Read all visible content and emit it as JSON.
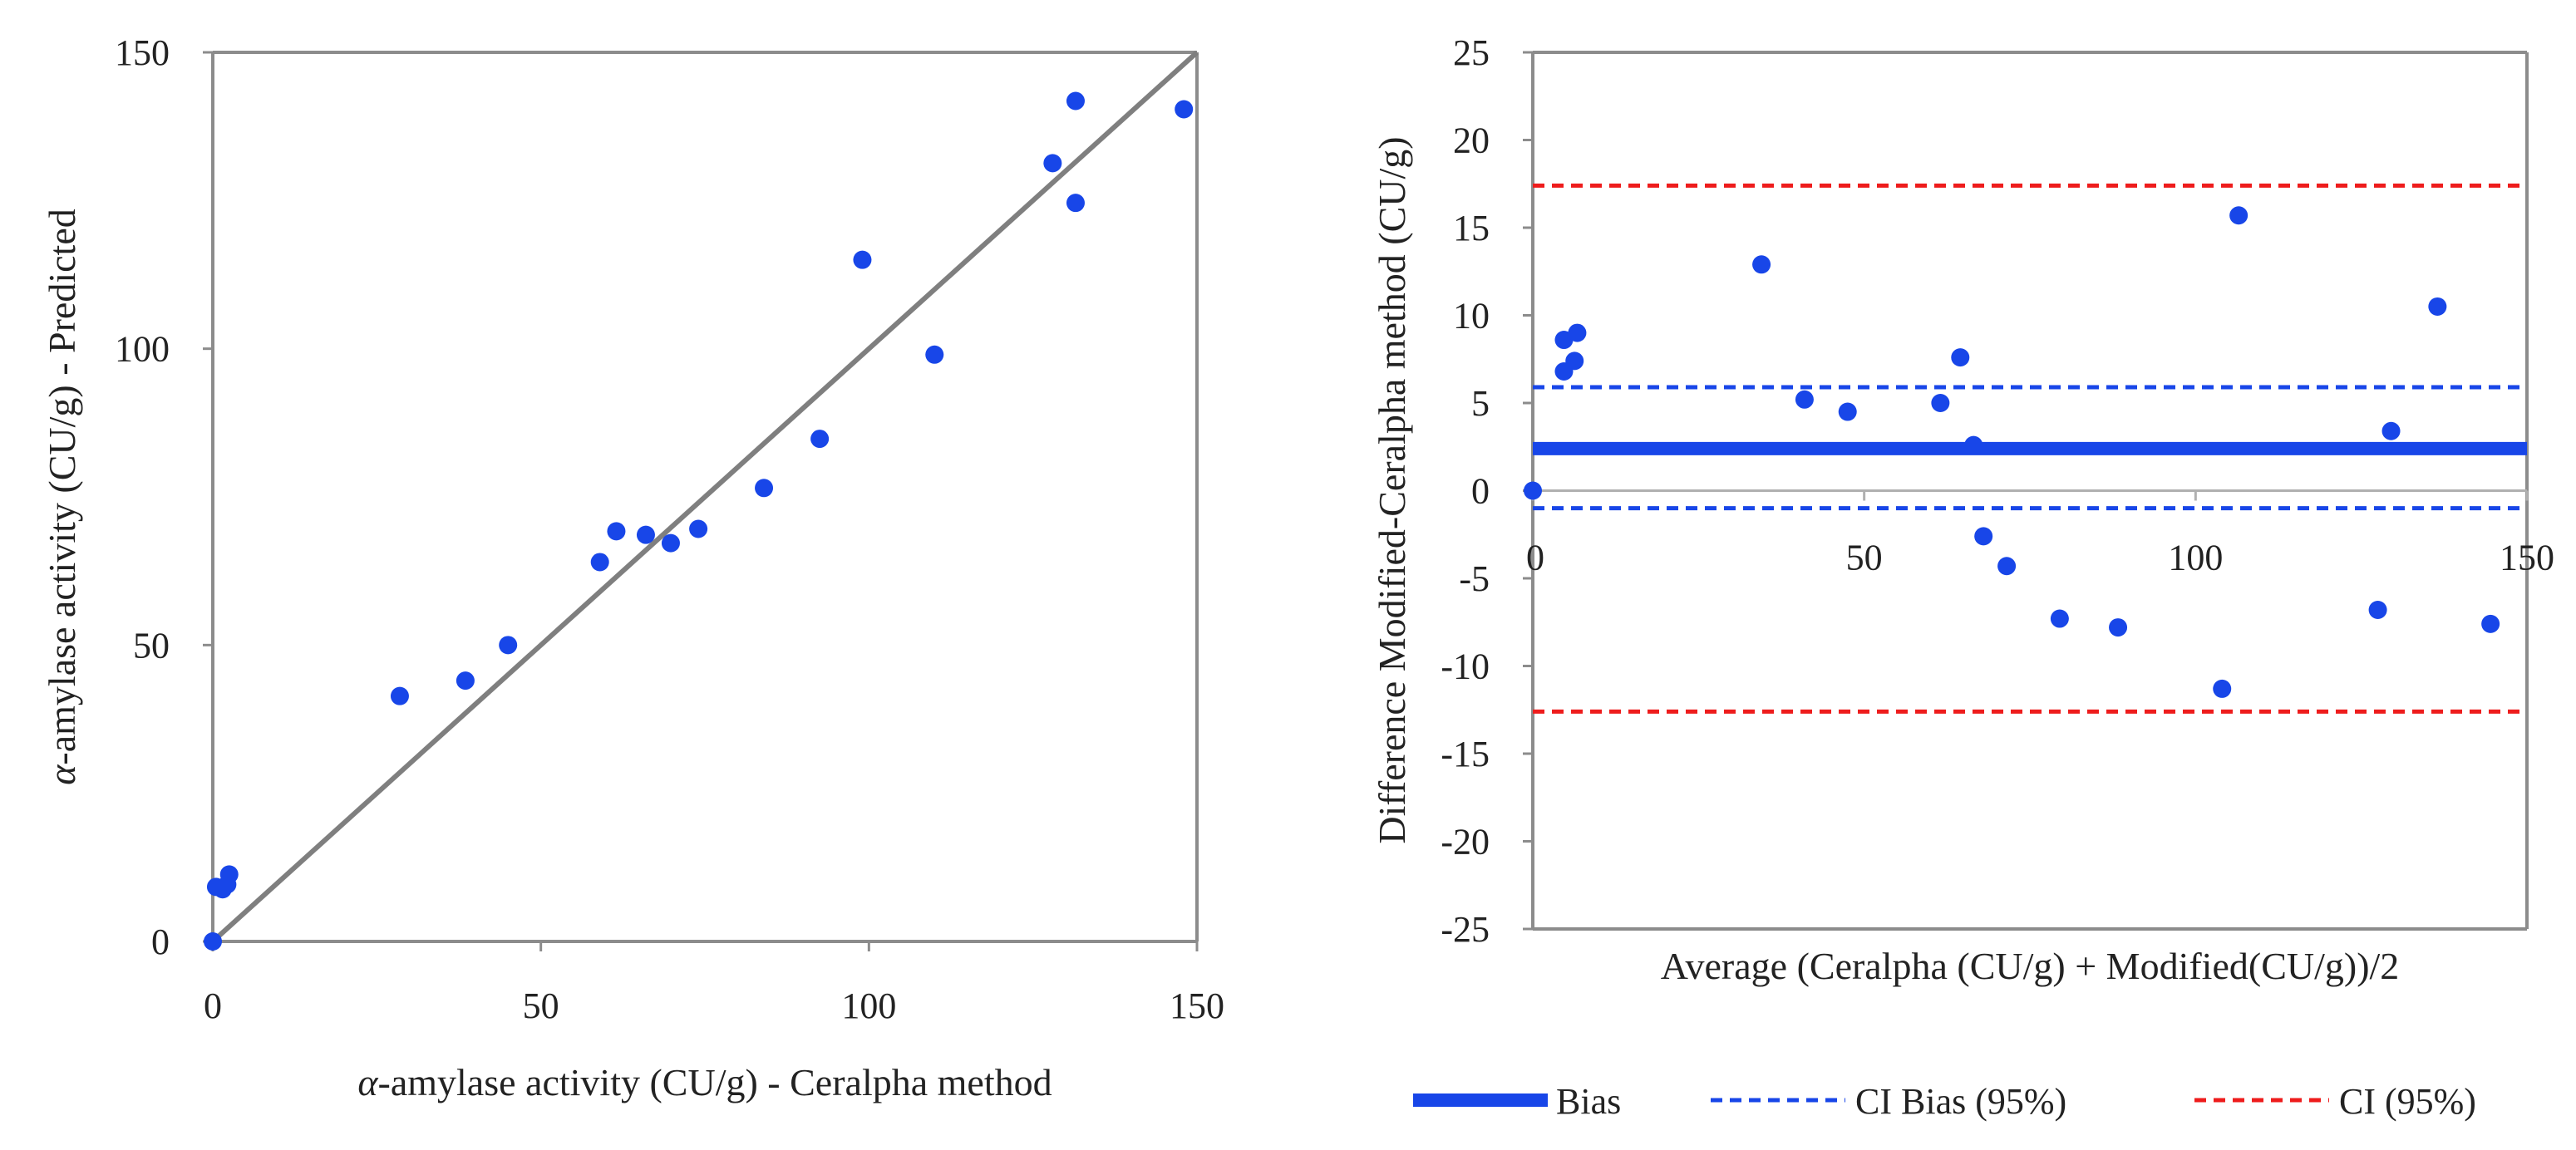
{
  "colors": {
    "points": "#1846e8",
    "identity_line": "#7f7f7f",
    "frame": "#8c8c8c",
    "zero_line": "#b0b0b0",
    "bias": "#1846e8",
    "ci_bias": "#1846e8",
    "ci": "#ee1c1c"
  },
  "chart_data": [
    {
      "type": "scatter",
      "id": "parity",
      "title": "",
      "xlabel_symbol": "α",
      "xlabel": "-amylase activity (CU/g) - Ceralpha method",
      "ylabel_symbol": "α",
      "ylabel": "-amylase activity (CU/g) - Predicted",
      "xlim": [
        0,
        150
      ],
      "ylim": [
        0,
        150
      ],
      "xticks": [
        0,
        50,
        100,
        150
      ],
      "yticks": [
        0,
        50,
        100,
        150
      ],
      "identity_line": {
        "from": [
          0,
          0
        ],
        "to": [
          150,
          150
        ]
      },
      "points": [
        [
          0,
          0
        ],
        [
          0.5,
          9.2
        ],
        [
          1.5,
          8.8
        ],
        [
          2.2,
          9.6
        ],
        [
          2.5,
          11.3
        ],
        [
          28.5,
          41.4
        ],
        [
          38.5,
          44
        ],
        [
          45,
          50
        ],
        [
          59,
          64
        ],
        [
          61.5,
          69.2
        ],
        [
          66,
          68.6
        ],
        [
          69.8,
          67.2
        ],
        [
          74,
          69.6
        ],
        [
          84,
          76.5
        ],
        [
          92.5,
          84.8
        ],
        [
          99,
          115
        ],
        [
          110,
          99
        ],
        [
          128,
          131.3
        ],
        [
          131.5,
          141.8
        ],
        [
          131.5,
          124.6
        ],
        [
          148,
          140.4
        ]
      ]
    },
    {
      "type": "scatter",
      "id": "bland-altman",
      "title": "",
      "xlabel": "Average (Ceralpha (CU/g) + Modified(CU/g))/2",
      "ylabel": "Difference Modified-Ceralpha method (CU/g)",
      "xlim": [
        0,
        150
      ],
      "ylim": [
        -25,
        25
      ],
      "xticks": [
        0,
        50,
        100,
        150
      ],
      "yticks": [
        -25,
        -20,
        -15,
        -10,
        -5,
        0,
        5,
        10,
        15,
        20,
        25
      ],
      "hlines": {
        "bias": 2.4,
        "ci_bias_upper": 5.9,
        "ci_bias_lower": -1.0,
        "ci_upper": 17.4,
        "ci_lower": -12.6
      },
      "points": [
        [
          0,
          0
        ],
        [
          4.7,
          6.8
        ],
        [
          4.7,
          8.6
        ],
        [
          6.3,
          7.4
        ],
        [
          6.7,
          9.0
        ],
        [
          34.5,
          12.9
        ],
        [
          41,
          5.2
        ],
        [
          47.5,
          4.5
        ],
        [
          61.5,
          5.0
        ],
        [
          64.5,
          7.6
        ],
        [
          66.5,
          2.6
        ],
        [
          68,
          -2.6
        ],
        [
          71.5,
          -4.3
        ],
        [
          79.5,
          -7.3
        ],
        [
          88.3,
          -7.8
        ],
        [
          104,
          -11.3
        ],
        [
          106.5,
          15.7
        ],
        [
          127.5,
          -6.8
        ],
        [
          129.5,
          3.4
        ],
        [
          136.5,
          10.5
        ],
        [
          144.5,
          -7.6
        ]
      ],
      "legend": [
        {
          "key": "bias",
          "label": "Bias",
          "style": "solid"
        },
        {
          "key": "ci_bias",
          "label": "CI Bias (95%)",
          "style": "dashed"
        },
        {
          "key": "ci",
          "label": "CI (95%)",
          "style": "dashed"
        }
      ]
    }
  ]
}
